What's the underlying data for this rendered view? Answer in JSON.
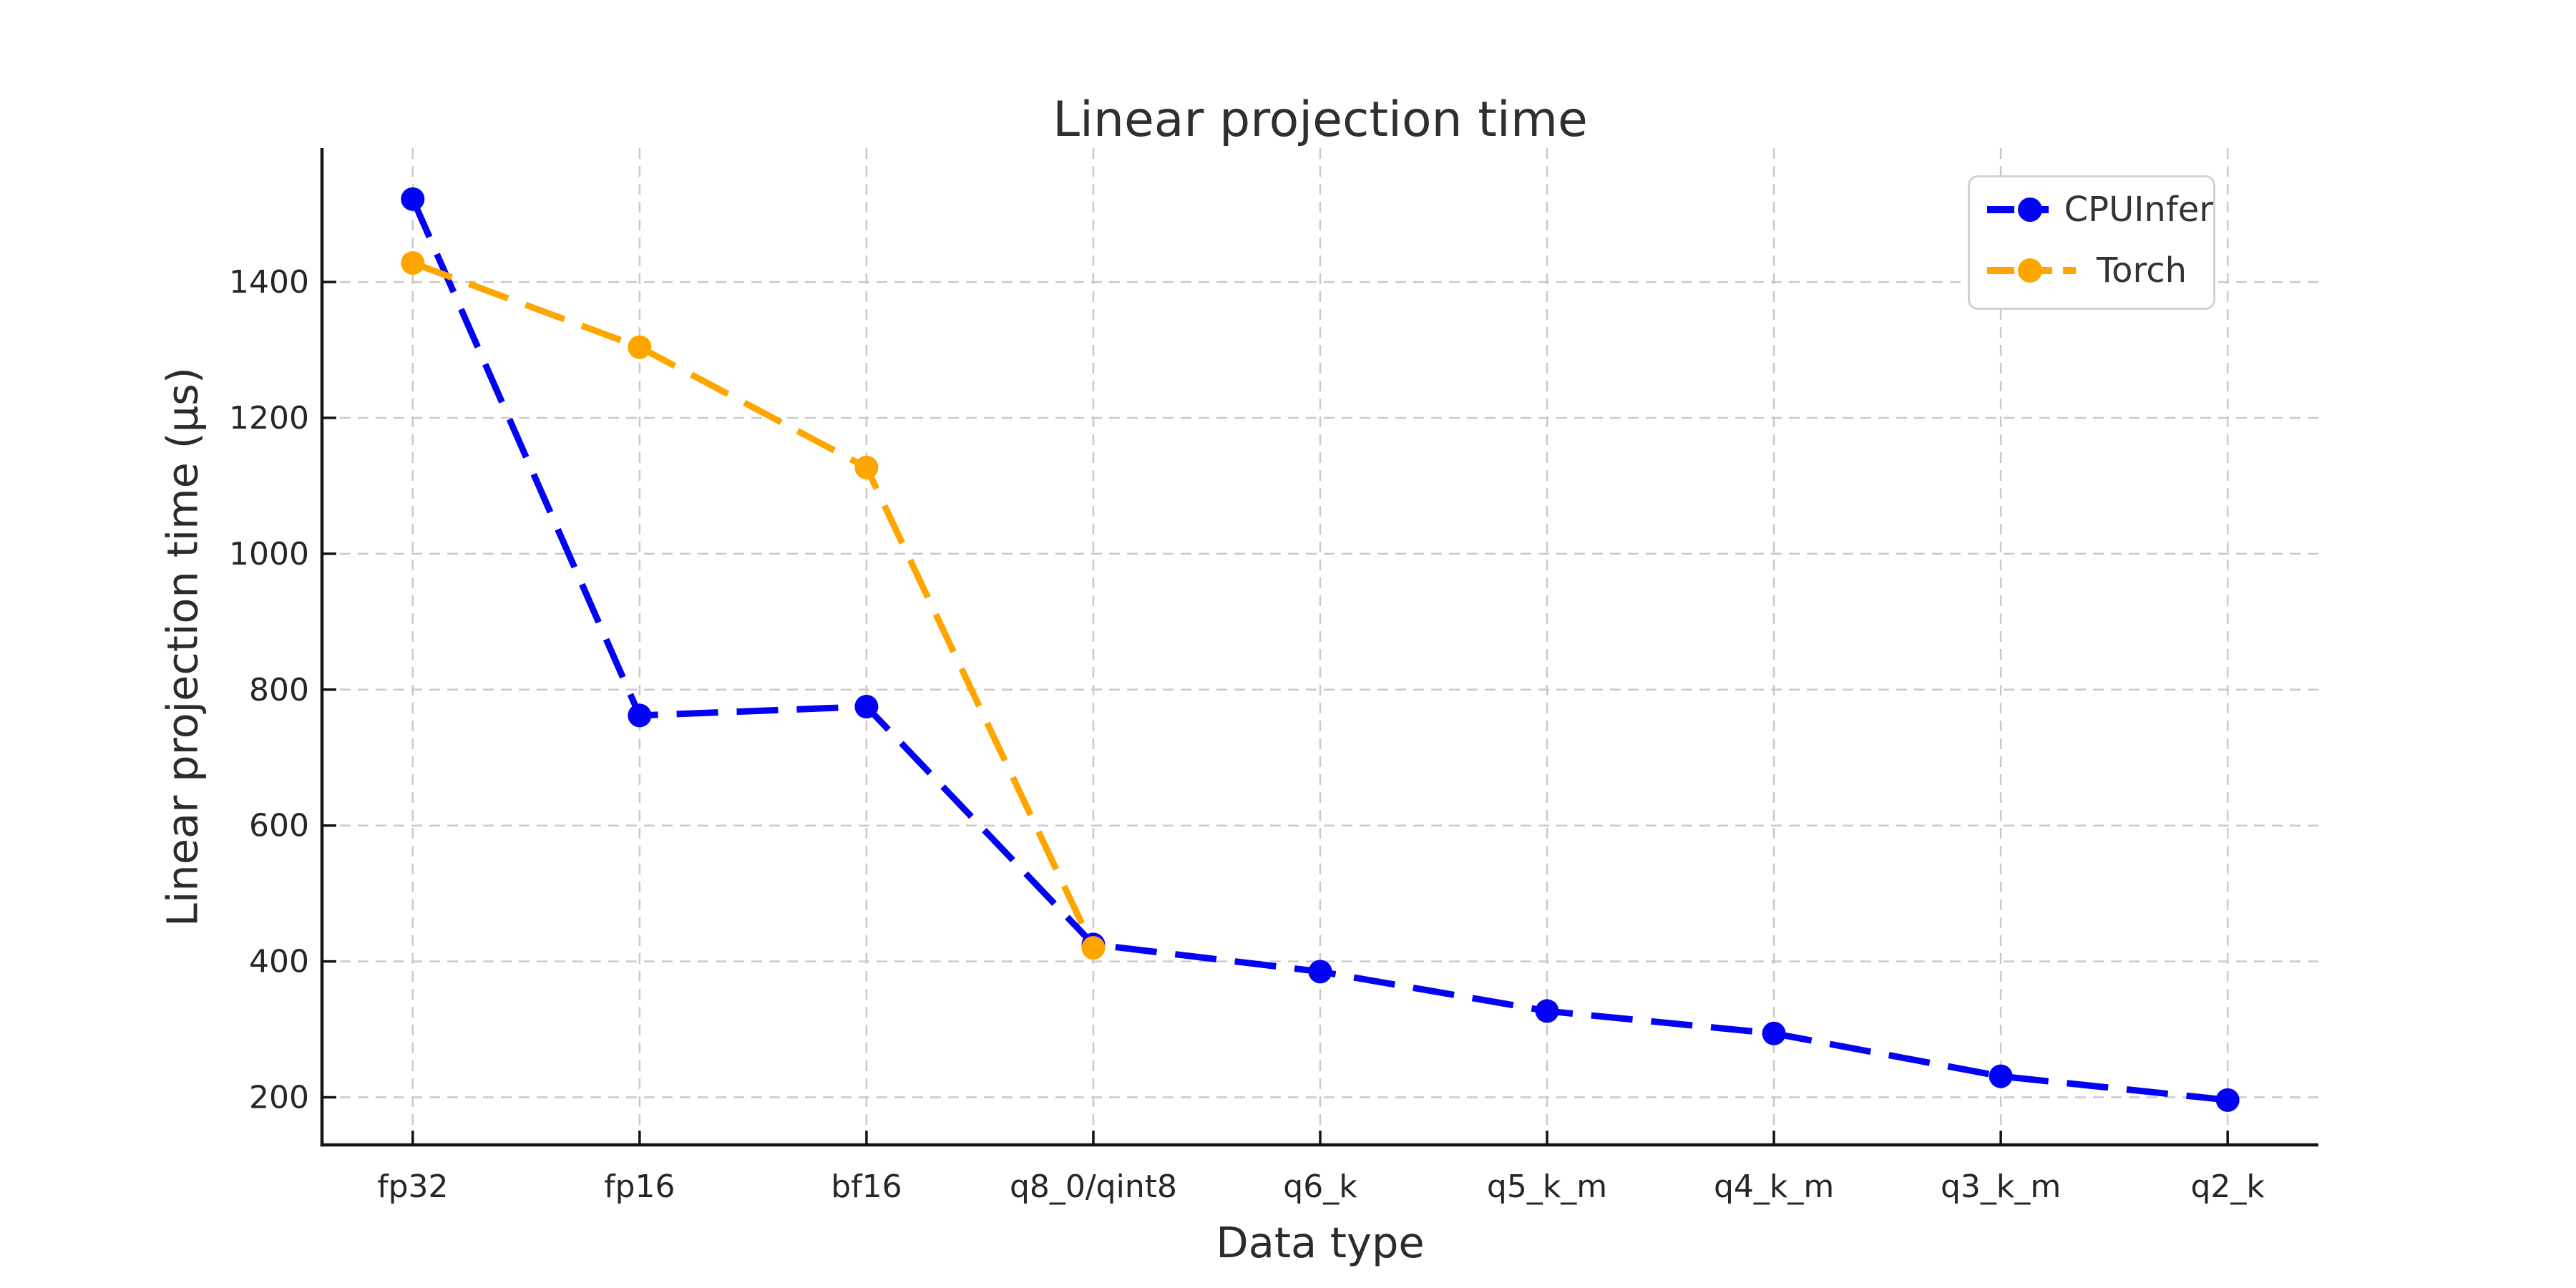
{
  "chart_data": {
    "type": "line",
    "title": "Linear projection time",
    "xlabel": "Data type",
    "ylabel": "Linear projection time (μs)",
    "categories": [
      "fp32",
      "fp16",
      "bf16",
      "q8_0/qint8",
      "q6_k",
      "q5_k_m",
      "q4_k_m",
      "q3_k_m",
      "q2_k"
    ],
    "series": [
      {
        "name": "CPUInfer",
        "color": "#0202F5",
        "values": [
          1522,
          762,
          775,
          425,
          385,
          327,
          294,
          231,
          196
        ]
      },
      {
        "name": "Torch",
        "color": "#FFA500",
        "values": [
          1428,
          1304,
          1127,
          420,
          null,
          null,
          null,
          null,
          null
        ]
      }
    ],
    "yticks": [
      200,
      400,
      600,
      800,
      1000,
      1200,
      1400
    ],
    "ylim": [
      130,
      1597
    ],
    "xlim": [
      -0.4,
      8.4
    ],
    "grid": true,
    "grid_style": "dashed",
    "line_style": "dashed",
    "marker": "circle",
    "legend_position": "upper right"
  },
  "legend": {
    "entries": [
      {
        "label": "CPUInfer"
      },
      {
        "label": "Torch"
      }
    ]
  },
  "style_colors": {
    "background": "#ffffff",
    "grid": "#c9c9c9",
    "spine": "#141414",
    "tick_text": "#262626",
    "legend_border": "#d2d2d2"
  }
}
